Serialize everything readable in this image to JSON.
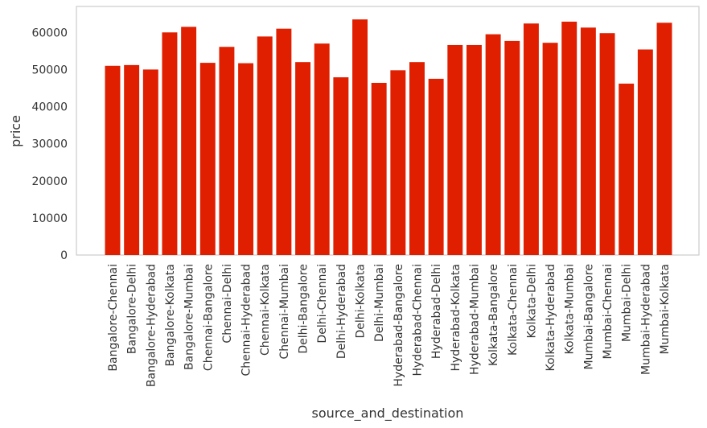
{
  "chart_data": {
    "type": "bar",
    "title": "",
    "xlabel": "source_and_destination",
    "ylabel": "price",
    "ylim": [
      0,
      67000
    ],
    "yticks": [
      0,
      10000,
      20000,
      30000,
      40000,
      50000,
      60000
    ],
    "grid": false,
    "bar_color": "#e01e00",
    "categories": [
      "Bangalore-Chennai",
      "Bangalore-Delhi",
      "Bangalore-Hyderabad",
      "Bangalore-Kolkata",
      "Bangalore-Mumbai",
      "Chennai-Bangalore",
      "Chennai-Delhi",
      "Chennai-Hyderabad",
      "Chennai-Kolkata",
      "Chennai-Mumbai",
      "Delhi-Bangalore",
      "Delhi-Chennai",
      "Delhi-Hyderabad",
      "Delhi-Kolkata",
      "Delhi-Mumbai",
      "Hyderabad-Bangalore",
      "Hyderabad-Chennai",
      "Hyderabad-Delhi",
      "Hyderabad-Kolkata",
      "Hyderabad-Mumbai",
      "Kolkata-Bangalore",
      "Kolkata-Chennai",
      "Kolkata-Delhi",
      "Kolkata-Hyderabad",
      "Kolkata-Mumbai",
      "Mumbai-Bangalore",
      "Mumbai-Chennai",
      "Mumbai-Delhi",
      "Mumbai-Hyderabad",
      "Mumbai-Kolkata"
    ],
    "values": [
      51000,
      51200,
      50000,
      60000,
      61500,
      51800,
      56100,
      51700,
      58900,
      61000,
      52000,
      57000,
      47900,
      63500,
      46400,
      49800,
      52000,
      47500,
      56600,
      56600,
      59500,
      57700,
      62400,
      57200,
      62900,
      61300,
      59800,
      46200,
      55400,
      62600
    ]
  }
}
